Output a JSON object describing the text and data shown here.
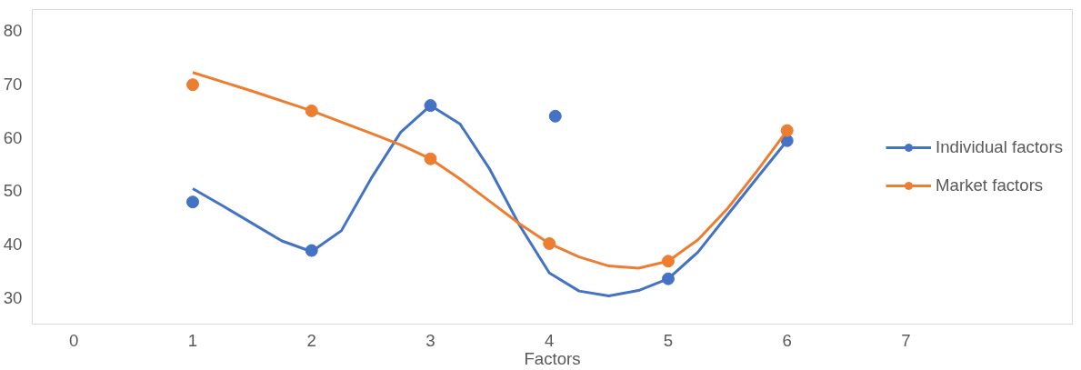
{
  "chart_data": {
    "type": "scatter",
    "xlabel": "Factors",
    "xlim": [
      -0.35,
      8.4
    ],
    "ylim": [
      25,
      84
    ],
    "xticks": [
      0,
      1,
      2,
      3,
      4,
      5,
      6,
      7
    ],
    "yticks": [
      30,
      40,
      50,
      60,
      70,
      80
    ],
    "grid": false,
    "legend": "right",
    "marker": "circle",
    "series": [
      {
        "name": "Individual factors",
        "color": "#4472c4",
        "x": [
          1,
          2,
          3,
          4.05,
          5,
          6
        ],
        "values": [
          47.9,
          38.8,
          66,
          64,
          33.5,
          59.4
        ]
      },
      {
        "type": "line",
        "marker": "none",
        "color": "#4472c4",
        "x": [
          1,
          1.25,
          1.5,
          1.75,
          2,
          2.25,
          2.5,
          2.75,
          3,
          3.25,
          3.5,
          3.75,
          4,
          4.25,
          4.5,
          4.75,
          5,
          5.25,
          5.5,
          5.75,
          6
        ],
        "values": [
          50.4,
          47.2,
          43.9,
          40.6,
          38.6,
          42.5,
          52.3,
          61,
          66,
          62.5,
          54,
          43.5,
          34.6,
          31.2,
          30.3,
          31.3,
          33.5,
          38.5,
          45.5,
          52.5,
          59.4
        ]
      },
      {
        "name": "Market factors",
        "color": "#ed7d31",
        "x": [
          1,
          2,
          3,
          4,
          5,
          6
        ],
        "values": [
          69.9,
          65,
          56,
          40.1,
          36.8,
          61.3
        ]
      },
      {
        "type": "line",
        "marker": "none",
        "color": "#ed7d31",
        "x": [
          1,
          1.5,
          2,
          2.5,
          2.75,
          3,
          3.25,
          3.5,
          3.75,
          4,
          4.25,
          4.5,
          4.75,
          5,
          5.25,
          5.5,
          5.75,
          6
        ],
        "values": [
          72.2,
          68.7,
          65,
          60.8,
          58.6,
          56,
          52.2,
          48,
          43.8,
          40.1,
          37.6,
          35.9,
          35.5,
          36.8,
          40.8,
          46.7,
          53.8,
          61.3
        ]
      }
    ]
  }
}
